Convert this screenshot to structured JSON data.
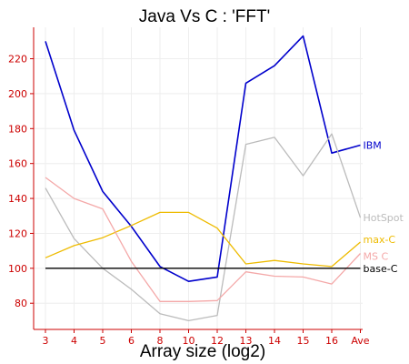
{
  "chart_data": {
    "type": "line",
    "title": "Java Vs C : 'FFT'",
    "xlabel": "Array size (log2)",
    "ylabel": "",
    "categories": [
      "3",
      "4",
      "5",
      "6",
      "8",
      "10",
      "12",
      "13",
      "14",
      "15",
      "16",
      "Ave"
    ],
    "ylim": [
      65,
      238
    ],
    "yticks": [
      80,
      100,
      120,
      140,
      160,
      180,
      200,
      220
    ],
    "grid": true,
    "series": [
      {
        "name": "IBM",
        "color": "#0000cc",
        "values": [
          230,
          179,
          144,
          124,
          101,
          92.5,
          95,
          206,
          216,
          233,
          166,
          170.5
        ]
      },
      {
        "name": "HotSpot",
        "color": "#bbbbbb",
        "values": [
          146,
          117,
          100,
          88,
          74,
          70,
          73,
          171,
          175,
          153,
          177,
          129
        ]
      },
      {
        "name": "max-C",
        "color": "#eebb00",
        "values": [
          106,
          113,
          117.5,
          124.5,
          132,
          132,
          123,
          102.5,
          104.5,
          102.5,
          101,
          115
        ]
      },
      {
        "name": "MS C",
        "color": "#f4a8a8",
        "values": [
          152,
          140,
          134,
          104,
          81,
          81,
          81.5,
          98,
          95.5,
          95,
          91,
          108.5
        ]
      },
      {
        "name": "base-C",
        "color": "#000000",
        "values": [
          100,
          100,
          100,
          100,
          100,
          100,
          100,
          100,
          100,
          100,
          100,
          100
        ]
      }
    ]
  }
}
